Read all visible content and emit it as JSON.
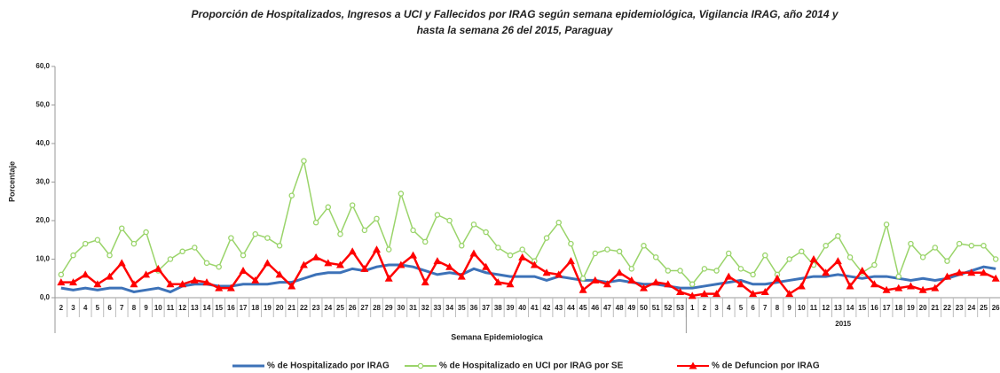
{
  "chart_data": {
    "type": "line",
    "title_lines": [
      "Proporción de Hospitalizados, Ingresos a UCI y Fallecidos por IRAG según semana epidemiológica, Vigilancia IRAG, año 2014  y",
      "hasta la semana 26 del 2015, Paraguay"
    ],
    "x_label": "Semana Epidemiologica",
    "y_label": "Porcentaje",
    "category_groups": [
      {
        "label": null,
        "categories": [
          "2",
          "3",
          "4",
          "5",
          "6",
          "7",
          "8",
          "9",
          "10",
          "11",
          "12",
          "13",
          "14",
          "15",
          "16",
          "17",
          "18",
          "19",
          "20",
          "21",
          "22",
          "23",
          "24",
          "25",
          "26",
          "27",
          "28",
          "29",
          "30",
          "31",
          "32",
          "33",
          "34",
          "35",
          "36",
          "37",
          "38",
          "39",
          "40",
          "41",
          "42",
          "43",
          "44",
          "45",
          "46",
          "47",
          "48",
          "49",
          "50",
          "51",
          "52",
          "53"
        ]
      },
      {
        "label": "2015",
        "categories": [
          "1",
          "2",
          "3",
          "4",
          "5",
          "6",
          "7",
          "8",
          "9",
          "10",
          "11",
          "12",
          "13",
          "14",
          "15",
          "16",
          "17",
          "18",
          "19",
          "20",
          "21",
          "22",
          "23",
          "24",
          "25",
          "26"
        ]
      }
    ],
    "ylim": [
      0,
      60
    ],
    "yticks": [
      {
        "value": 0,
        "label": "0,0"
      },
      {
        "value": 10,
        "label": "10,0"
      },
      {
        "value": 20,
        "label": "20,0"
      },
      {
        "value": 30,
        "label": "30,0"
      },
      {
        "value": 40,
        "label": "40,0"
      },
      {
        "value": 50,
        "label": "50,0"
      },
      {
        "value": 60,
        "label": "60,0"
      }
    ],
    "series": [
      {
        "name": "% de Hospitalizado por IRAG",
        "color": "#3d72b8",
        "marker": "none",
        "values": [
          2.5,
          2,
          2.5,
          2,
          2.5,
          2.5,
          1.5,
          2,
          2.5,
          1.5,
          3,
          3.5,
          3.5,
          3,
          3,
          3.5,
          3.5,
          3.5,
          4,
          4,
          5,
          6,
          6.5,
          6.5,
          7.5,
          7,
          8,
          8.5,
          8.5,
          8,
          7,
          6,
          6.5,
          6,
          7.5,
          6.5,
          6,
          5.5,
          5.5,
          5.5,
          4.5,
          5.5,
          5,
          4.5,
          4.5,
          4,
          4.5,
          4,
          3.5,
          3.5,
          3,
          2.5,
          2.5,
          3,
          3.5,
          4,
          4.5,
          3.5,
          3.5,
          4,
          4.5,
          5,
          5.5,
          5.5,
          6,
          5.5,
          5,
          5.5,
          5.5,
          5,
          4.5,
          5,
          4.5,
          5,
          6,
          7,
          8,
          7.5
        ]
      },
      {
        "name": "% de Hospitalizado en UCI por IRAG por SE",
        "color": "#9ad46a",
        "marker": "circle",
        "values": [
          6,
          11,
          14,
          15,
          11,
          18,
          14,
          17,
          7,
          10,
          12,
          13,
          9,
          8,
          15.5,
          11,
          16.5,
          15.5,
          13.5,
          26.5,
          35.5,
          19.5,
          23.5,
          16.5,
          24,
          17.5,
          20.5,
          12.5,
          27,
          17.5,
          14.5,
          21.5,
          20,
          13.5,
          19,
          17,
          13,
          11,
          12.5,
          9.5,
          15.5,
          19.5,
          14,
          5,
          11.5,
          12.5,
          12,
          7.5,
          13.5,
          10.5,
          7,
          7,
          3.5,
          7.5,
          7,
          11.5,
          7.5,
          6,
          11,
          6,
          10,
          12,
          8.5,
          13.5,
          16,
          10.5,
          6.5,
          8.5,
          19,
          5.5,
          14,
          10.5,
          13,
          9.5,
          14,
          13.5,
          13.5,
          10
        ]
      },
      {
        "name": "% de Defuncion por IRAG",
        "color": "#ff0000",
        "marker": "triangle",
        "values": [
          4,
          4,
          6,
          3.5,
          5.5,
          9,
          3.5,
          6,
          7.5,
          3.5,
          3.5,
          4.5,
          4,
          2.5,
          2.5,
          7,
          4.5,
          9,
          6,
          3,
          8.5,
          10.5,
          9,
          8.5,
          12,
          7.5,
          12.5,
          5,
          8.5,
          11,
          4,
          9.5,
          8,
          5.5,
          11.5,
          8,
          4,
          3.5,
          10.5,
          8.5,
          6.5,
          6,
          9.5,
          2,
          4.5,
          3.5,
          6.5,
          4.5,
          2.5,
          4,
          3.5,
          1.5,
          0.5,
          1,
          1,
          5.5,
          3.5,
          1,
          1.5,
          5,
          1,
          3,
          10,
          6.5,
          9.5,
          3,
          7,
          3.5,
          2,
          2.5,
          3,
          2,
          2.5,
          5.5,
          6.5,
          6.5,
          6.5,
          5
        ]
      }
    ],
    "grid": false
  }
}
